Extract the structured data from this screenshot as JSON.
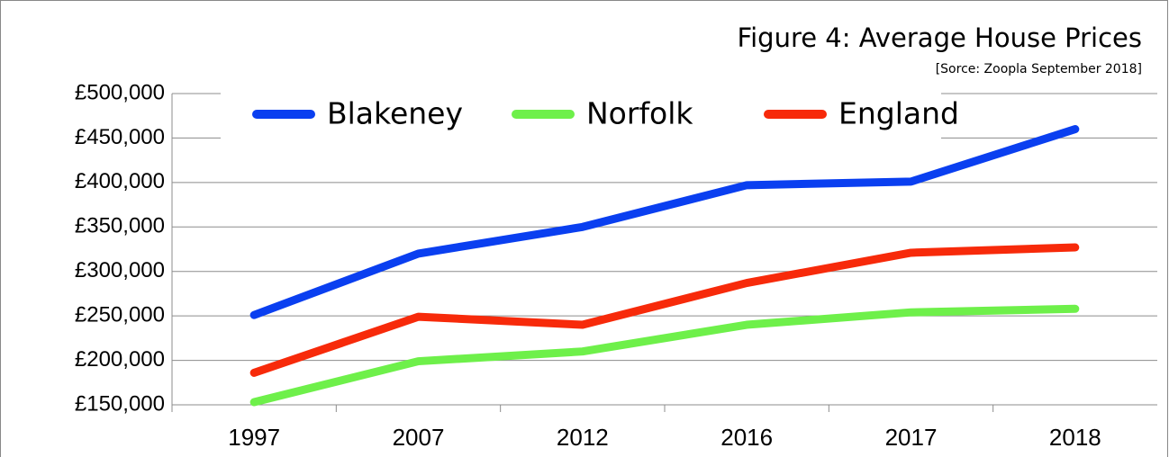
{
  "chart_data": {
    "type": "line",
    "title": "Figure 4: Average House Prices",
    "subtitle": "[Sorce: Zoopla September 2018]",
    "categories": [
      "1997",
      "2007",
      "2012",
      "2016",
      "2017",
      "2018"
    ],
    "series": [
      {
        "name": "Blakeney",
        "color": "#0a3ff0",
        "values": [
          251000,
          320000,
          350000,
          397000,
          401000,
          460000
        ]
      },
      {
        "name": "Norfolk",
        "color": "#6ef04a",
        "values": [
          153000,
          199000,
          210000,
          240000,
          254000,
          258000
        ]
      },
      {
        "name": "England",
        "color": "#f72a0a",
        "values": [
          186000,
          249000,
          240000,
          287000,
          321000,
          327000
        ]
      }
    ],
    "ylim": [
      150000,
      500000
    ],
    "yticks": [
      {
        "value": 150000,
        "label": "£150,000"
      },
      {
        "value": 200000,
        "label": "£200,000"
      },
      {
        "value": 250000,
        "label": "£250,000"
      },
      {
        "value": 300000,
        "label": "£300,000"
      },
      {
        "value": 350000,
        "label": "£350,000"
      },
      {
        "value": 400000,
        "label": "£400,000"
      },
      {
        "value": 450000,
        "label": "£450,000"
      },
      {
        "value": 500000,
        "label": "£500,000"
      }
    ],
    "grid": true,
    "legend": "top"
  }
}
